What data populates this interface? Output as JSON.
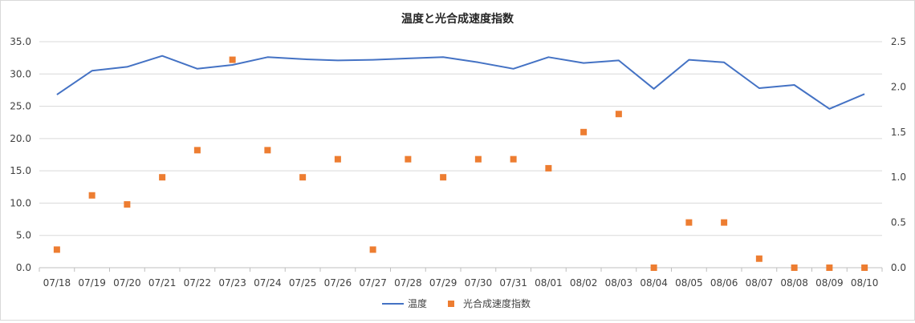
{
  "chart_data": {
    "type": "line+scatter",
    "title": "温度と光合成速度指数",
    "categories": [
      "07/18",
      "07/19",
      "07/20",
      "07/21",
      "07/22",
      "07/23",
      "07/24",
      "07/25",
      "07/26",
      "07/27",
      "07/28",
      "07/29",
      "07/30",
      "07/31",
      "08/01",
      "08/02",
      "08/03",
      "08/04",
      "08/05",
      "08/06",
      "08/07",
      "08/08",
      "08/09",
      "08/10"
    ],
    "series": [
      {
        "name": "温度",
        "type": "line",
        "axis": "left",
        "color": "#4472c4",
        "values": [
          26.8,
          30.5,
          31.1,
          32.8,
          30.8,
          31.4,
          32.6,
          32.3,
          32.1,
          32.2,
          32.4,
          32.6,
          31.8,
          30.8,
          32.6,
          31.7,
          32.1,
          27.7,
          32.2,
          31.8,
          27.8,
          28.3,
          24.6,
          26.9
        ]
      },
      {
        "name": "光合成速度指数",
        "type": "scatter",
        "axis": "right",
        "color": "#ed7d31",
        "values": [
          0.2,
          0.8,
          0.7,
          1.0,
          1.3,
          2.3,
          1.3,
          1.0,
          1.2,
          0.2,
          1.2,
          1.0,
          1.2,
          1.2,
          1.1,
          1.5,
          1.7,
          0.0,
          0.5,
          0.5,
          0.1,
          0.0,
          0.0,
          0.0
        ]
      }
    ],
    "y_left": {
      "ylim": [
        0,
        35
      ],
      "ticks": [
        "0.0",
        "5.0",
        "10.0",
        "15.0",
        "20.0",
        "25.0",
        "30.0",
        "35.0"
      ]
    },
    "y_right": {
      "ylim": [
        0,
        2.5
      ],
      "ticks": [
        "0.0",
        "0.5",
        "1.0",
        "1.5",
        "2.0",
        "2.5"
      ]
    },
    "grid": true,
    "legend_position": "bottom"
  }
}
